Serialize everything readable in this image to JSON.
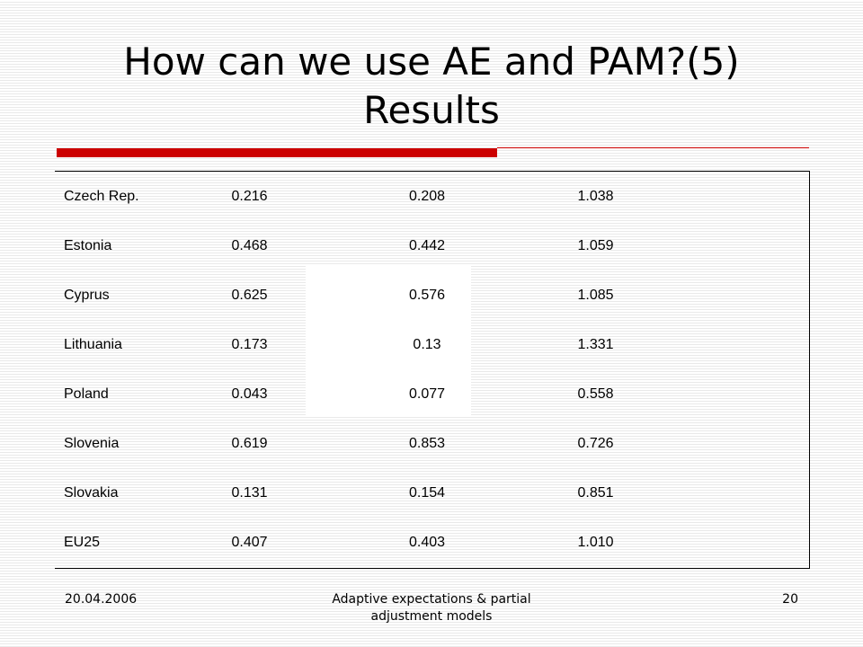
{
  "slide": {
    "title_line1": "How can we use AE and PAM?(5)",
    "title_line2": "Results"
  },
  "table": {
    "rows": [
      {
        "country": "Czech Rep.",
        "v1": "0.216",
        "v2": "0.208",
        "v3": "1.038"
      },
      {
        "country": "Estonia",
        "v1": "0.468",
        "v2": "0.442",
        "v3": "1.059"
      },
      {
        "country": "Cyprus",
        "v1": "0.625",
        "v2": "0.576",
        "v3": "1.085"
      },
      {
        "country": "Lithuania",
        "v1": "0.173",
        "v2": "0.13",
        "v3": "1.331"
      },
      {
        "country": "Poland",
        "v1": "0.043",
        "v2": "0.077",
        "v3": "0.558"
      },
      {
        "country": "Slovenia",
        "v1": "0.619",
        "v2": "0.853",
        "v3": "0.726"
      },
      {
        "country": "Slovakia",
        "v1": "0.131",
        "v2": "0.154",
        "v3": "0.851"
      },
      {
        "country": "EU25",
        "v1": "0.407",
        "v2": "0.403",
        "v3": "1.010"
      }
    ]
  },
  "footer": {
    "date": "20.04.2006",
    "title_line1": "Adaptive expectations & partial",
    "title_line2": "adjustment models",
    "page": "20"
  },
  "colors": {
    "accent": "#cc0000",
    "text": "#000000",
    "background": "#ffffff"
  }
}
